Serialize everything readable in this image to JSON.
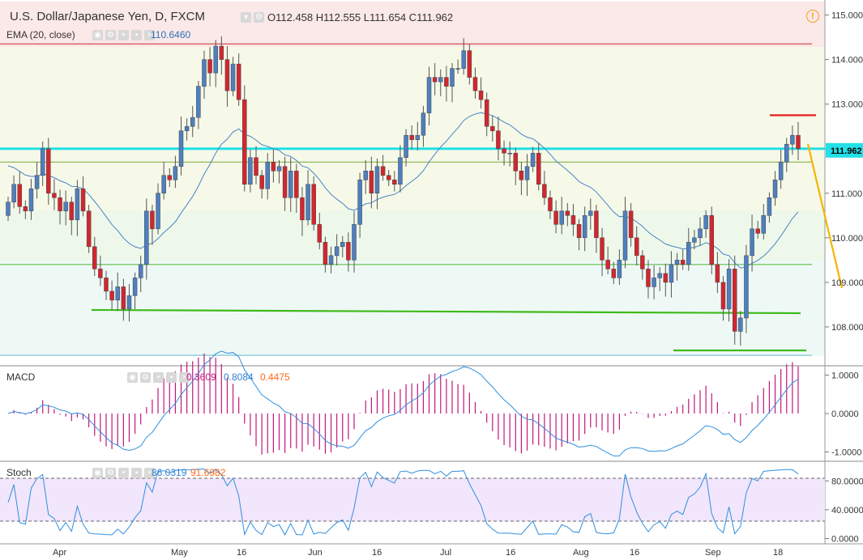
{
  "header": {
    "title": "U.S. Dollar/Japanese Yen, D, FXCM",
    "ohlc": "O112.458  H112.555  L111.654  C111.962",
    "ema_label": "EMA (20, close)",
    "ema_value": "110.6460",
    "warn_icon": "!"
  },
  "colors": {
    "up": "#4e7fc0",
    "down": "#d3262f",
    "ema": "#4a84c4",
    "macd_hist": "#c0177b",
    "signal": "#ff6a1a",
    "cyan": "#22e0e8",
    "green": "#3fba1a",
    "red_line": "#e0201e",
    "yellow": "#f5b400",
    "stoch_band": "#f1e6fb"
  },
  "chart_data": [
    {
      "type": "candlestick",
      "title": "U.S. Dollar/Japanese Yen, D, FXCM",
      "price_axis": {
        "min": 107.2,
        "max": 115.3,
        "ticks": [
          "115.000",
          "114.000",
          "113.000",
          "112.000",
          "111.000",
          "110.000",
          "109.000",
          "108.000"
        ]
      },
      "last_price_label": "111.962",
      "x_axis_labels": [
        "Apr",
        "May",
        "16",
        "Jun",
        "16",
        "Jul",
        "16",
        "Aug",
        "16",
        "Sep",
        "18"
      ],
      "closes": [
        110.8,
        111.2,
        110.7,
        110.6,
        111.1,
        111.4,
        112.0,
        111.0,
        110.9,
        110.6,
        110.8,
        110.4,
        111.1,
        110.6,
        109.8,
        109.3,
        109.1,
        108.8,
        108.6,
        108.9,
        108.4,
        108.7,
        109.1,
        109.4,
        110.6,
        110.2,
        111.0,
        111.4,
        111.3,
        111.6,
        112.4,
        112.5,
        112.7,
        113.4,
        114.0,
        113.7,
        114.3,
        114.0,
        113.3,
        113.9,
        113.1,
        111.2,
        111.8,
        111.4,
        111.1,
        111.7,
        111.5,
        111.6,
        110.9,
        111.5,
        110.9,
        110.4,
        111.2,
        110.3,
        109.9,
        109.4,
        109.6,
        109.8,
        109.9,
        109.5,
        110.3,
        111.3,
        111.5,
        111.0,
        111.6,
        111.4,
        111.3,
        111.2,
        111.8,
        112.3,
        112.2,
        112.3,
        112.8,
        113.6,
        113.5,
        113.6,
        113.4,
        113.8,
        113.8,
        114.2,
        113.6,
        113.3,
        113.1,
        112.5,
        112.4,
        112.0,
        111.9,
        111.9,
        111.5,
        111.3,
        111.6,
        111.9,
        111.2,
        110.9,
        110.6,
        110.3,
        110.6,
        110.5,
        110.3,
        110.0,
        110.5,
        110.6,
        110.0,
        109.5,
        109.3,
        109.1,
        109.5,
        110.6,
        110.0,
        109.6,
        109.3,
        108.9,
        109.1,
        109.2,
        109.0,
        109.4,
        109.5,
        109.4,
        109.9,
        110.0,
        110.2,
        110.5,
        109.4,
        109.0,
        108.4,
        109.3,
        107.9,
        108.2,
        109.6,
        110.2,
        110.1,
        110.5,
        110.9,
        111.3,
        111.7,
        112.1,
        112.3,
        112.0
      ],
      "ema_label": "EMA (20, close)",
      "ema_last": "110.6460",
      "levels": [
        {
          "name": "cyan-resistance",
          "value": 112.0
        },
        {
          "name": "red-top",
          "value": 114.35
        },
        {
          "name": "green-mid",
          "value": 111.7
        },
        {
          "name": "green-low",
          "value": 109.4
        },
        {
          "name": "red-target",
          "value": 112.75
        }
      ]
    },
    {
      "type": "macd",
      "label": "MACD",
      "values": [
        "0.3609",
        "0.8084",
        "0.4475"
      ],
      "axis": {
        "min": -1.2,
        "max": 1.2,
        "ticks": [
          "1.0000",
          "0.0000",
          "-1.0000"
        ]
      }
    },
    {
      "type": "stochastic",
      "label": "Stoch",
      "values": [
        "86.0319",
        "91.6982"
      ],
      "axis": {
        "min": -5,
        "max": 105,
        "ticks": [
          "80.0000",
          "40.0000",
          "0.0000"
        ]
      }
    }
  ]
}
